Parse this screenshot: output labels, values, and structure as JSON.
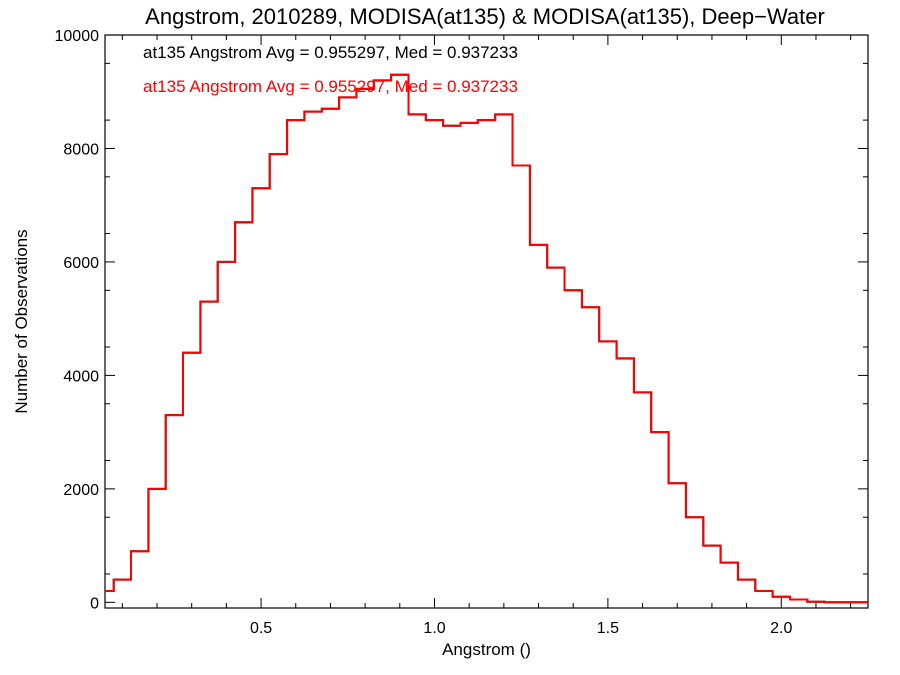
{
  "chart_data": {
    "type": "line",
    "title": "Angstrom, 2010289, MODISA(at135) & MODISA(at135), Deep−Water",
    "xlabel": "Angstrom ()",
    "ylabel": "Number of Observations",
    "xlim": [
      0.05,
      2.25
    ],
    "ylim": [
      -100,
      10000
    ],
    "x_ticks": [
      0.5,
      1.0,
      1.5,
      2.0
    ],
    "x_tick_labels": [
      "0.5",
      "1.0",
      "1.5",
      "2.0"
    ],
    "y_ticks": [
      0,
      2000,
      4000,
      6000,
      8000,
      10000
    ],
    "y_tick_labels": [
      "0",
      "2000",
      "4000",
      "6000",
      "8000",
      "10000"
    ],
    "grid": false,
    "step": "histogram",
    "annotations": [
      {
        "text": "at135 Angstrom Avg = 0.955297, Med = 0.937233",
        "color": "#000000"
      },
      {
        "text": "at135 Angstrom Avg = 0.955297, Med = 0.937233",
        "color": "#ff0000"
      }
    ],
    "series": [
      {
        "color": "#000000",
        "x": [
          0.05,
          0.1,
          0.15,
          0.2,
          0.25,
          0.3,
          0.35,
          0.4,
          0.45,
          0.5,
          0.55,
          0.6,
          0.65,
          0.7,
          0.75,
          0.8,
          0.85,
          0.9,
          0.95,
          1.0,
          1.05,
          1.1,
          1.15,
          1.2,
          1.25,
          1.3,
          1.35,
          1.4,
          1.45,
          1.5,
          1.55,
          1.6,
          1.65,
          1.7,
          1.75,
          1.8,
          1.85,
          1.9,
          1.95,
          2.0,
          2.05,
          2.1,
          2.15,
          2.2,
          2.25
        ],
        "values": [
          200,
          400,
          900,
          2000,
          3300,
          4400,
          5300,
          6000,
          6700,
          7300,
          7900,
          8500,
          8650,
          8700,
          8900,
          9050,
          9200,
          9300,
          8600,
          8500,
          8400,
          8450,
          8500,
          8600,
          7700,
          6300,
          5900,
          5500,
          5200,
          4600,
          4300,
          3700,
          3000,
          2100,
          1500,
          1000,
          700,
          400,
          200,
          100,
          50,
          10,
          0,
          0,
          0
        ]
      },
      {
        "color": "#ff0000",
        "x": [
          0.05,
          0.1,
          0.15,
          0.2,
          0.25,
          0.3,
          0.35,
          0.4,
          0.45,
          0.5,
          0.55,
          0.6,
          0.65,
          0.7,
          0.75,
          0.8,
          0.85,
          0.9,
          0.95,
          1.0,
          1.05,
          1.1,
          1.15,
          1.2,
          1.25,
          1.3,
          1.35,
          1.4,
          1.45,
          1.5,
          1.55,
          1.6,
          1.65,
          1.7,
          1.75,
          1.8,
          1.85,
          1.9,
          1.95,
          2.0,
          2.05,
          2.1,
          2.15,
          2.2,
          2.25
        ],
        "values": [
          200,
          400,
          900,
          2000,
          3300,
          4400,
          5300,
          6000,
          6700,
          7300,
          7900,
          8500,
          8650,
          8700,
          8900,
          9050,
          9200,
          9300,
          8600,
          8500,
          8400,
          8450,
          8500,
          8600,
          7700,
          6300,
          5900,
          5500,
          5200,
          4600,
          4300,
          3700,
          3000,
          2100,
          1500,
          1000,
          700,
          400,
          200,
          100,
          50,
          10,
          0,
          0,
          0
        ]
      }
    ]
  }
}
